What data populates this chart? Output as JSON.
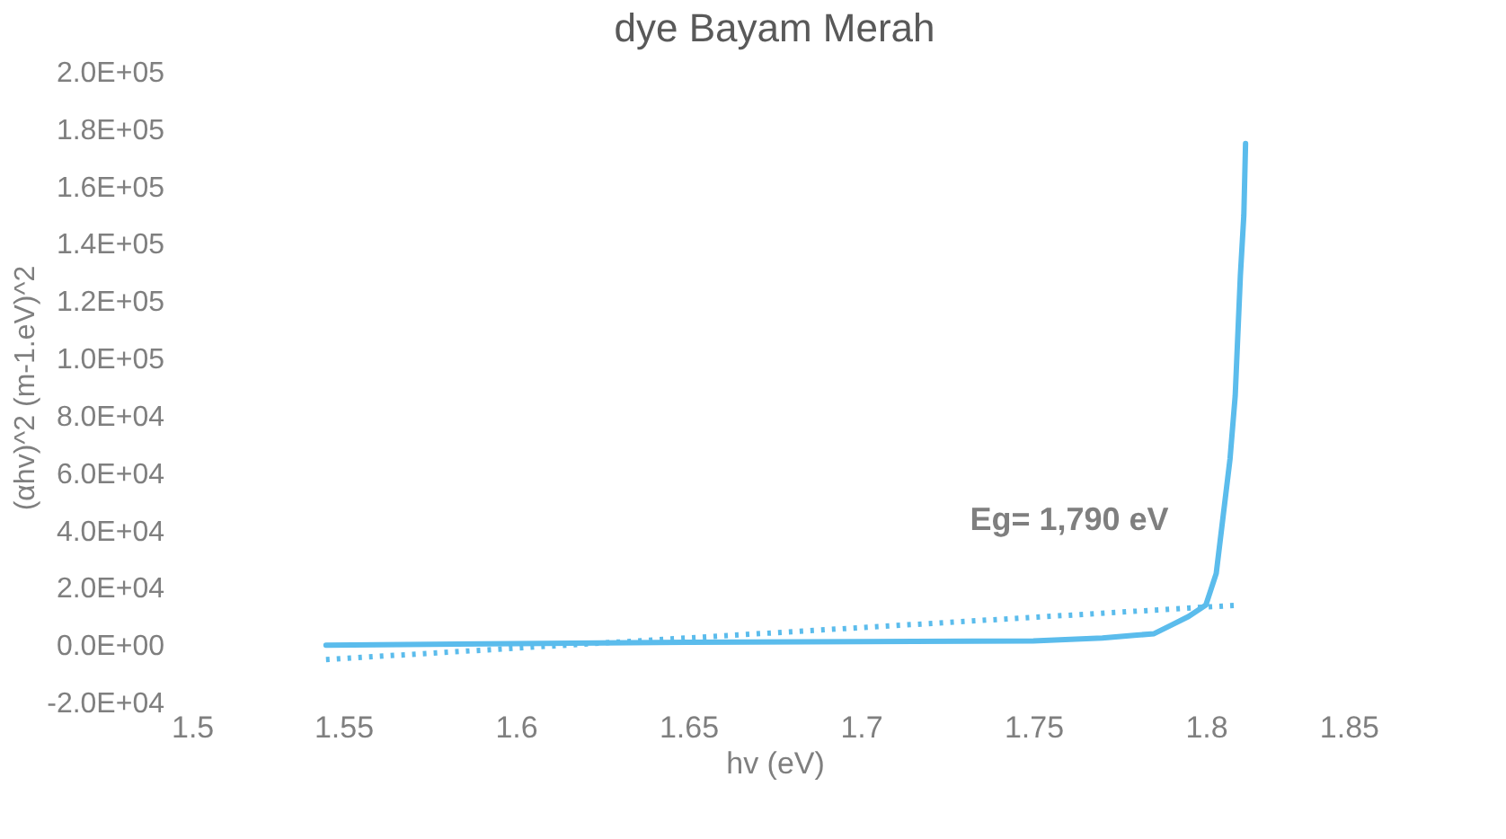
{
  "chart_data": {
    "type": "line",
    "title": "dye Bayam Merah",
    "xlabel": "hv (eV)",
    "ylabel": "(αhv)^2 (m-1.eV)^2",
    "xlim": [
      1.5,
      1.85
    ],
    "xticks": [
      1.5,
      1.55,
      1.6,
      1.65,
      1.7,
      1.75,
      1.8,
      1.85
    ],
    "ylim": [
      -20000,
      200000
    ],
    "yticks": [
      {
        "value": -20000,
        "label": "-2.0E+04"
      },
      {
        "value": 0,
        "label": "0.0E+00"
      },
      {
        "value": 20000,
        "label": "2.0E+04"
      },
      {
        "value": 40000,
        "label": "4.0E+04"
      },
      {
        "value": 60000,
        "label": "6.0E+04"
      },
      {
        "value": 80000,
        "label": "8.0E+04"
      },
      {
        "value": 100000,
        "label": "1.0E+05"
      },
      {
        "value": 120000,
        "label": "1.2E+05"
      },
      {
        "value": 140000,
        "label": "1.4E+05"
      },
      {
        "value": 160000,
        "label": "1.6E+05"
      },
      {
        "value": 180000,
        "label": "1.8E+05"
      },
      {
        "value": 200000,
        "label": "2.0E+05"
      }
    ],
    "grid": false,
    "legend": false,
    "marker": "none",
    "series": [
      {
        "color": "#5bbcec",
        "line_style": "solid",
        "x": [
          1.545,
          1.6,
          1.65,
          1.7,
          1.75,
          1.77,
          1.78,
          1.785,
          1.79,
          1.795,
          1.8,
          1.803,
          1.805,
          1.807,
          1.8085,
          1.81,
          1.811,
          1.8115
        ],
        "values": [
          0,
          500,
          1000,
          1200,
          1500,
          2500,
          3500,
          4000,
          7000,
          10000,
          14000,
          25000,
          45000,
          65000,
          87000,
          129000,
          150000,
          175000
        ]
      },
      {
        "color": "#5bbcec",
        "line_style": "dotted",
        "x": [
          1.545,
          1.81
        ],
        "values": [
          -5000,
          14000
        ]
      }
    ],
    "annotations": [
      "Eg= 1,790 eV"
    ]
  }
}
